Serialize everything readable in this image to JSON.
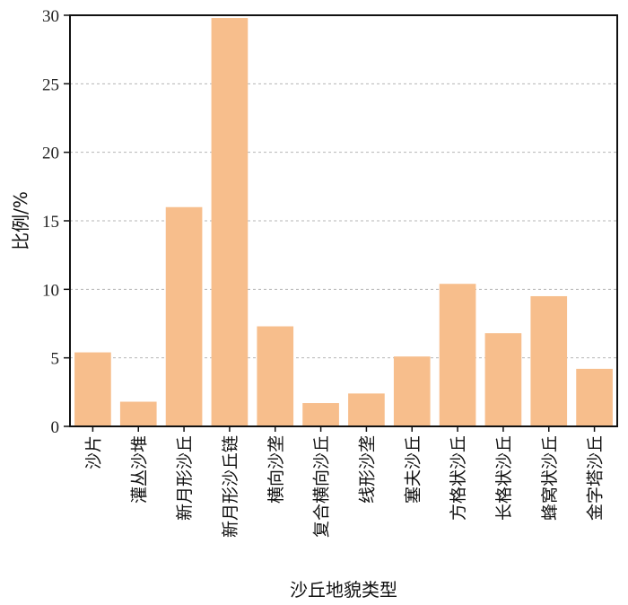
{
  "chart_data": {
    "type": "bar",
    "title": "",
    "xlabel": "沙丘地貌类型",
    "ylabel": "比例/%",
    "categories": [
      "沙片",
      "灌丛沙堆",
      "新月形沙丘",
      "新月形沙丘链",
      "横向沙垄",
      "复合横向沙丘",
      "线形沙垄",
      "塞夫沙丘",
      "方格状沙丘",
      "长格状沙丘",
      "蜂窝状沙丘",
      "金字塔沙丘"
    ],
    "values": [
      5.4,
      1.8,
      16.0,
      29.8,
      7.3,
      1.7,
      2.4,
      5.1,
      10.4,
      6.8,
      9.5,
      4.2
    ],
    "yticks": [
      0,
      5,
      10,
      15,
      20,
      25,
      30
    ],
    "ylim": [
      0,
      30
    ],
    "grid": "horizontal-dashed",
    "bar_color": "#f7be8c",
    "grid_color": "#b5b5b5",
    "axis_color": "#111111"
  }
}
